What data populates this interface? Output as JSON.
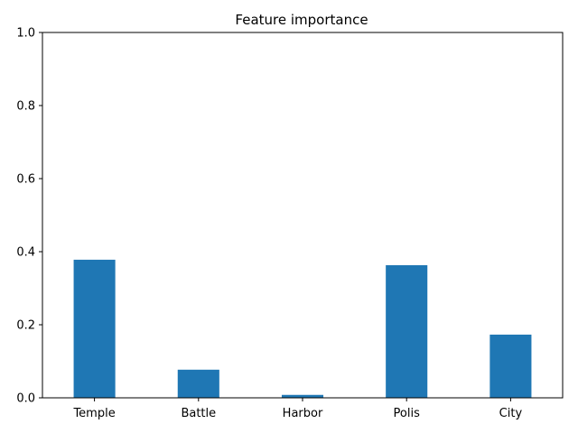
{
  "chart_data": {
    "type": "bar",
    "title": "Feature importance",
    "xlabel": "",
    "ylabel": "",
    "categories": [
      "Temple",
      "Battle",
      "Harbor",
      "Polis",
      "City"
    ],
    "values": [
      0.378,
      0.077,
      0.008,
      0.363,
      0.173
    ],
    "ylim": [
      0,
      1.0
    ],
    "yticks": [
      "0.0",
      "0.2",
      "0.4",
      "0.6",
      "0.8",
      "1.0"
    ],
    "grid": false,
    "bar_color": "#1f77b4"
  }
}
